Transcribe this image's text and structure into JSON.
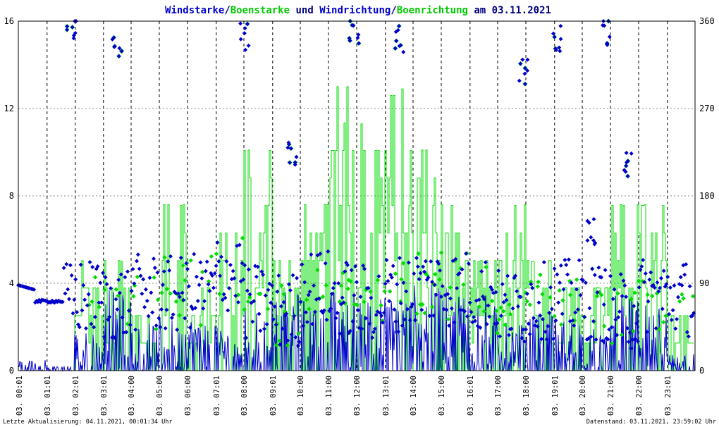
{
  "chart_data": {
    "type": "scatter",
    "title": {
      "parts": [
        {
          "text": "Windstarke",
          "color": "#0000cc"
        },
        {
          "text": "/",
          "color": "#000080"
        },
        {
          "text": "Boenstarke",
          "color": "#00cc00"
        },
        {
          "text": " und ",
          "color": "#000080"
        },
        {
          "text": "Windrichtung",
          "color": "#0000cc"
        },
        {
          "text": "/",
          "color": "#000080"
        },
        {
          "text": "Boenrichtung",
          "color": "#00cc00"
        },
        {
          "text": " am 03.11.2021",
          "color": "#000080"
        }
      ]
    },
    "y_left": {
      "range": [
        0,
        16
      ],
      "ticks": [
        "0",
        "4",
        "8",
        "12",
        "16"
      ],
      "tick_values": [
        0,
        4,
        8,
        12,
        16
      ]
    },
    "y_right": {
      "range": [
        0,
        360
      ],
      "ticks": [
        "0",
        "90",
        "180",
        "270",
        "360"
      ],
      "tick_values": [
        0,
        90,
        180,
        270,
        360
      ]
    },
    "x_range_hours": [
      0,
      24
    ],
    "x_ticks": [
      {
        "h": 0.02,
        "label": "03. 00:01"
      },
      {
        "h": 1.02,
        "label": "03. 01:01"
      },
      {
        "h": 2.02,
        "label": "03. 02:01"
      },
      {
        "h": 3.02,
        "label": "03. 03:01"
      },
      {
        "h": 4.0,
        "label": "03. 04:00"
      },
      {
        "h": 5.0,
        "label": "03. 05:00"
      },
      {
        "h": 6.0,
        "label": "03. 06:00"
      },
      {
        "h": 7.02,
        "label": "03. 07:01"
      },
      {
        "h": 8.0,
        "label": "03. 08:00"
      },
      {
        "h": 9.02,
        "label": "03. 09:01"
      },
      {
        "h": 10.0,
        "label": "03. 10:00"
      },
      {
        "h": 11.0,
        "label": "03. 11:00"
      },
      {
        "h": 12.0,
        "label": "03. 12:00"
      },
      {
        "h": 13.02,
        "label": "03. 13:01"
      },
      {
        "h": 14.0,
        "label": "03. 14:00"
      },
      {
        "h": 15.0,
        "label": "03. 15:00"
      },
      {
        "h": 16.02,
        "label": "03. 16:01"
      },
      {
        "h": 17.0,
        "label": "03. 17:00"
      },
      {
        "h": 18.0,
        "label": "03. 18:00"
      },
      {
        "h": 19.02,
        "label": "03. 19:01"
      },
      {
        "h": 20.0,
        "label": "03. 20:00"
      },
      {
        "h": 21.0,
        "label": "03. 21:00"
      },
      {
        "h": 22.0,
        "label": "03. 22:00"
      },
      {
        "h": 23.02,
        "label": "03. 23:01"
      }
    ],
    "grid": "dashed horizontal and vertical",
    "series": [
      {
        "key": "boen_staerke",
        "color": "#00dd00",
        "style": "step-line"
      },
      {
        "key": "wind_staerke",
        "color": "#0000cc",
        "style": "line"
      },
      {
        "key": "boen_richtung",
        "color": "#00dd00",
        "style": "points"
      },
      {
        "key": "wind_richtung",
        "color": "#0000cc",
        "style": "points"
      }
    ],
    "wind_staerke_hourly_peak": [
      0.5,
      0.2,
      1.8,
      3.8,
      2.2,
      2.4,
      2.5,
      2.0,
      3.0,
      3.6,
      3.3,
      3.8,
      3.5,
      3.4,
      4.0,
      3.8,
      3.5,
      2.2,
      2.6,
      2.5,
      2.0,
      3.5,
      3.0,
      0.8
    ],
    "boen_staerke_hourly_peak": [
      0.0,
      0.0,
      5.0,
      5.0,
      2.5,
      7.6,
      3.8,
      6.3,
      10.1,
      5.0,
      7.6,
      13.0,
      11.3,
      12.9,
      10.1,
      7.6,
      5.0,
      7.6,
      5.0,
      3.8,
      3.8,
      7.6,
      7.6,
      2.5
    ],
    "wind_richtung_hourly_typical": [
      88,
      72,
      75,
      70,
      80,
      78,
      82,
      100,
      70,
      62,
      85,
      75,
      70,
      80,
      88,
      85,
      80,
      65,
      72,
      75,
      70,
      60,
      78,
      75
    ],
    "richtung_clusters": [
      {
        "h": 1.9,
        "deg": 350
      },
      {
        "h": 3.5,
        "deg": 335
      },
      {
        "h": 8.0,
        "deg": 345
      },
      {
        "h": 9.7,
        "deg": 220
      },
      {
        "h": 11.9,
        "deg": 350
      },
      {
        "h": 13.5,
        "deg": 340
      },
      {
        "h": 17.9,
        "deg": 310
      },
      {
        "h": 19.1,
        "deg": 340
      },
      {
        "h": 20.3,
        "deg": 145
      },
      {
        "h": 20.9,
        "deg": 350
      },
      {
        "h": 21.6,
        "deg": 210
      }
    ],
    "footer_left": "Letzte Aktualisierung: 04.11.2021, 00:01:34 Uhr",
    "footer_right": "Datenstand: 03.11.2021, 23:59:02 Uhr"
  }
}
